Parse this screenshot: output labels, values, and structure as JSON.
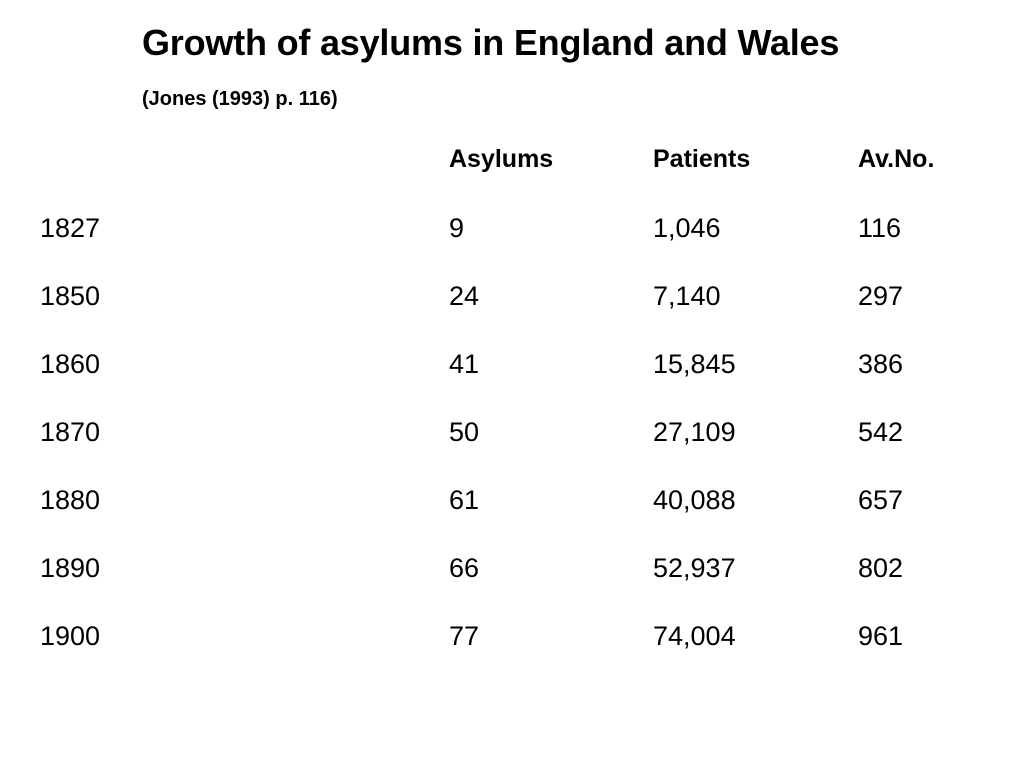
{
  "title": "Growth of asylums in England and Wales",
  "subtitle": "(Jones (1993) p. 116)",
  "table": {
    "headers": {
      "year": "",
      "asylums": "Asylums",
      "patients": "Patients",
      "avno": "Av.No."
    },
    "rows": [
      {
        "year": "1827",
        "asylums": "9",
        "patients": "1,046",
        "avno": "116"
      },
      {
        "year": "1850",
        "asylums": "24",
        "patients": "7,140",
        "avno": "297"
      },
      {
        "year": "1860",
        "asylums": "41",
        "patients": "15,845",
        "avno": "386"
      },
      {
        "year": "1870",
        "asylums": "50",
        "patients": "27,109",
        "avno": "542"
      },
      {
        "year": "1880",
        "asylums": "61",
        "patients": "40,088",
        "avno": "657"
      },
      {
        "year": "1890",
        "asylums": "66",
        "patients": "52,937",
        "avno": "802"
      },
      {
        "year": "1900",
        "asylums": "77",
        "patients": "74,004",
        "avno": "961"
      }
    ]
  }
}
